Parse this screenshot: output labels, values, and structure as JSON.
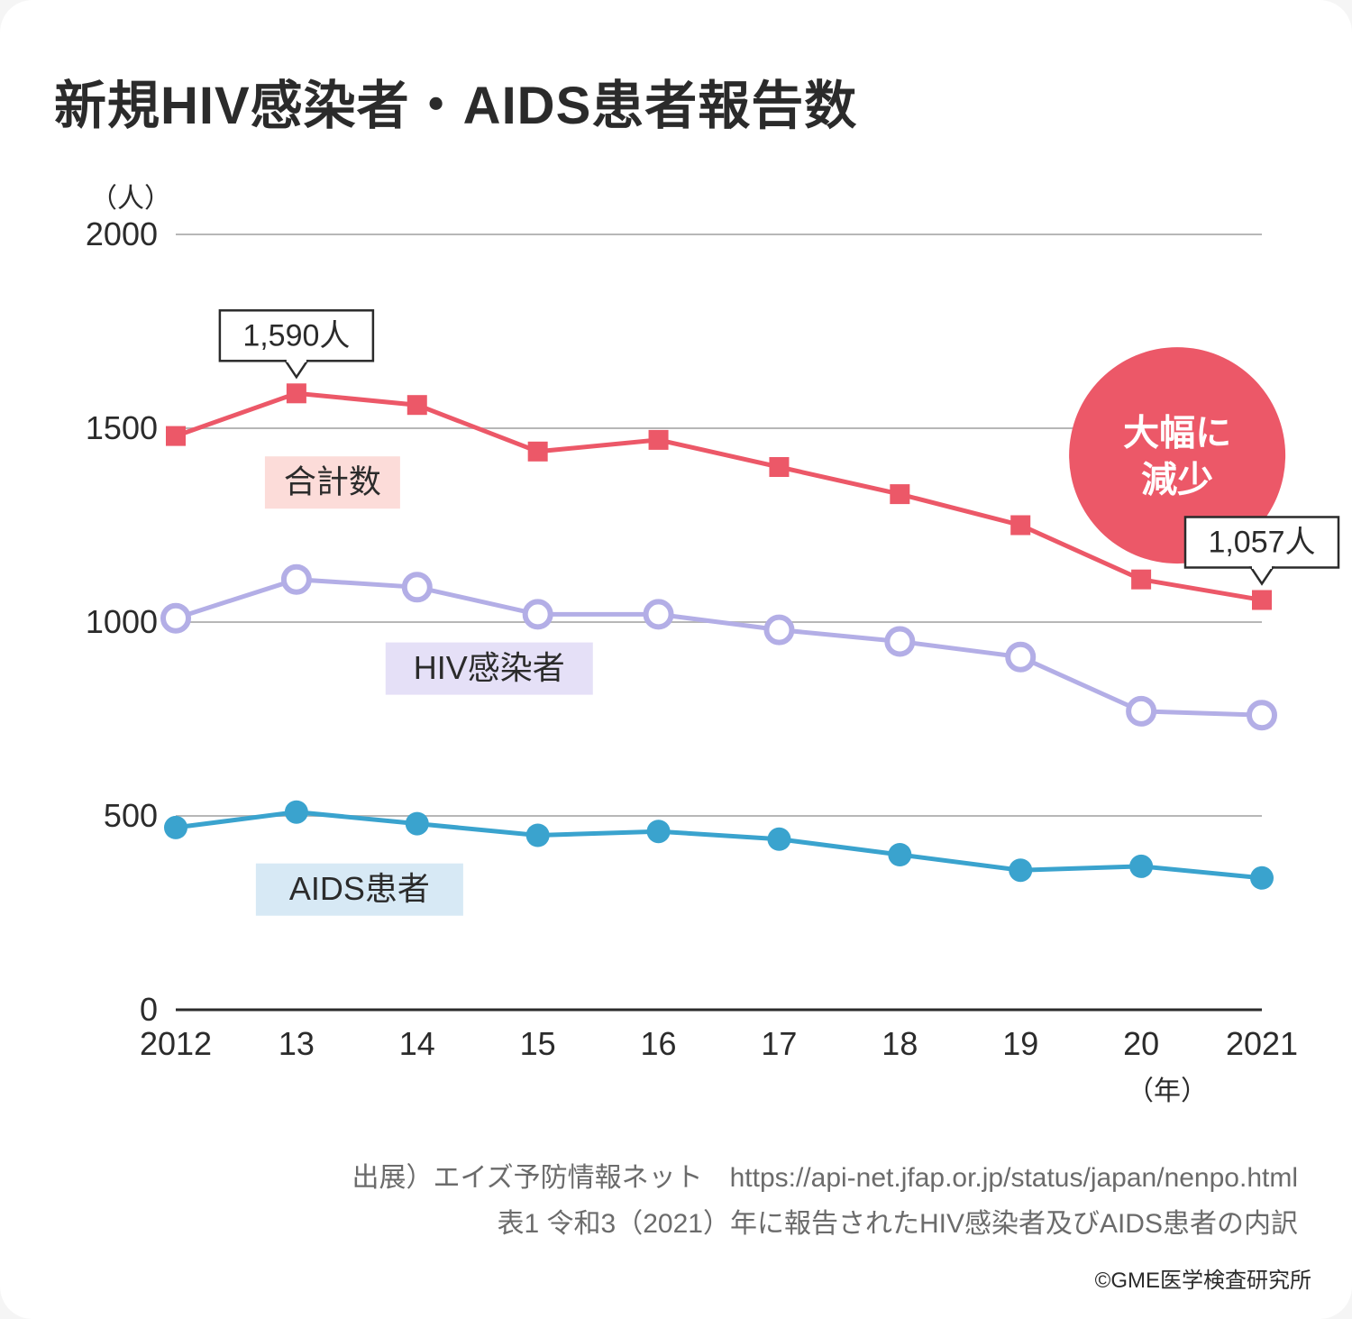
{
  "title": "新規HIV感染者・AIDS患者報告数",
  "chart": {
    "type": "line",
    "y_unit_label": "（人）",
    "x_unit_label": "（年）",
    "ylim": [
      0,
      2000
    ],
    "ytick_step": 500,
    "yticks": [
      0,
      500,
      1000,
      1500,
      2000
    ],
    "x_categories_display": [
      "2012",
      "13",
      "14",
      "15",
      "16",
      "17",
      "18",
      "19",
      "20",
      "2021"
    ],
    "x_categories_value": [
      2012,
      2013,
      2014,
      2015,
      2016,
      2017,
      2018,
      2019,
      2020,
      2021
    ],
    "grid_color": "#b7b7b7",
    "axis_color": "#2b2b2b",
    "background_color": "#ffffff",
    "tick_label_fontsize": 36,
    "series": {
      "total": {
        "label": "合計数",
        "label_bg": "#fcdcd9",
        "color": "#ec5868",
        "marker": "square-filled",
        "marker_size": 22,
        "line_width": 5,
        "values": [
          1480,
          1590,
          1560,
          1440,
          1470,
          1400,
          1330,
          1250,
          1110,
          1057
        ]
      },
      "hiv": {
        "label": "HIV感染者",
        "label_bg": "#e5e0f7",
        "color": "#b3aee6",
        "marker": "circle-open",
        "marker_size": 28,
        "marker_stroke_width": 6,
        "line_width": 5,
        "values": [
          1010,
          1110,
          1090,
          1020,
          1020,
          980,
          950,
          910,
          770,
          760
        ]
      },
      "aids": {
        "label": "AIDS患者",
        "label_bg": "#d7e9f5",
        "color": "#3aa3ce",
        "marker": "circle-filled",
        "marker_size": 26,
        "line_width": 5,
        "values": [
          470,
          510,
          480,
          450,
          460,
          440,
          400,
          360,
          370,
          340
        ]
      }
    },
    "callouts": {
      "peak": {
        "text": "1,590人",
        "anchor_series": "total",
        "anchor_index": 1
      },
      "last": {
        "text": "1,057人",
        "anchor_series": "total",
        "anchor_index": 9
      }
    },
    "bubble": {
      "text_line1": "大幅に",
      "text_line2": "減少",
      "fill": "#ec5868",
      "radius": 120
    }
  },
  "source_line1": "出展）エイズ予防情報ネット　https://api-net.jfap.or.jp/status/japan/nenpo.html",
  "source_line2": "表1 令和3（2021）年に報告されたHIV感染者及びAIDS患者の内訳",
  "copyright": "©GME医学検査研究所"
}
